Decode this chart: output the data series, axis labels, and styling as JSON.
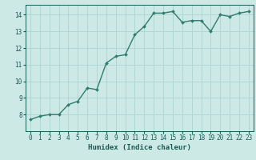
{
  "x": [
    0,
    1,
    2,
    3,
    4,
    5,
    6,
    7,
    8,
    9,
    10,
    11,
    12,
    13,
    14,
    15,
    16,
    17,
    18,
    19,
    20,
    21,
    22,
    23
  ],
  "y": [
    7.7,
    7.9,
    8.0,
    8.0,
    8.6,
    8.8,
    9.6,
    9.5,
    11.1,
    11.5,
    11.6,
    12.8,
    13.3,
    14.1,
    14.1,
    14.2,
    13.55,
    13.65,
    13.65,
    13.0,
    14.0,
    13.9,
    14.1,
    14.2
  ],
  "line_color": "#2e7d6e",
  "marker": "D",
  "markersize": 2,
  "linewidth": 1.0,
  "bg_color": "#cce9e5",
  "grid_color": "#aed4cf",
  "xlabel": "Humidex (Indice chaleur)",
  "xlabel_fontsize": 6.5,
  "xlabel_color": "#1a5c54",
  "tick_color": "#1a5c54",
  "tick_fontsize": 5.5,
  "xlim": [
    -0.5,
    23.5
  ],
  "ylim": [
    7.0,
    14.6
  ],
  "yticks": [
    8,
    9,
    10,
    11,
    12,
    13,
    14
  ],
  "xticks": [
    0,
    1,
    2,
    3,
    4,
    5,
    6,
    7,
    8,
    9,
    10,
    11,
    12,
    13,
    14,
    15,
    16,
    17,
    18,
    19,
    20,
    21,
    22,
    23
  ]
}
